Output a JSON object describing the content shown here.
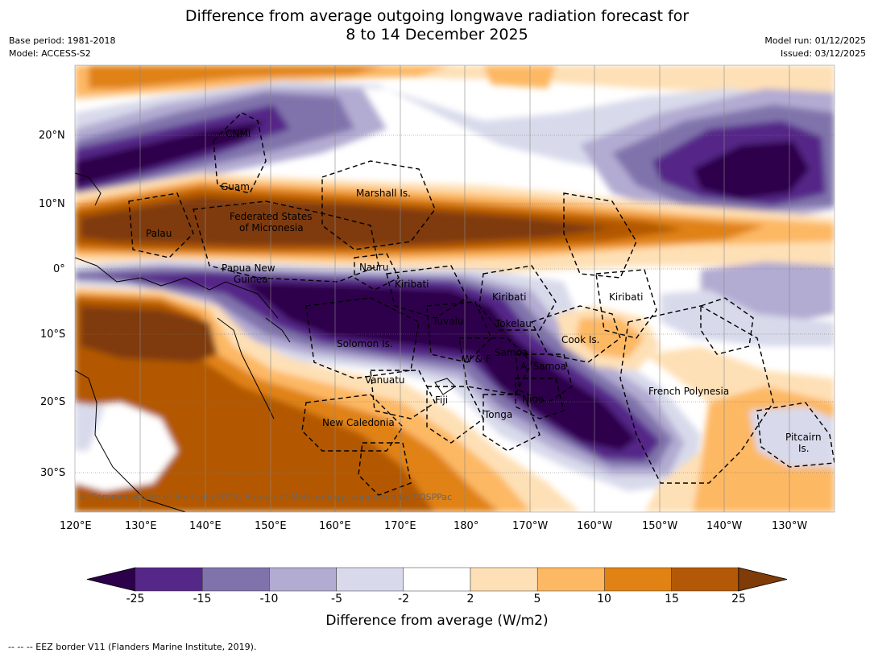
{
  "title": {
    "line1": "Difference from average outgoing longwave radiation forecast for",
    "line2": "8 to 14 December 2025"
  },
  "meta": {
    "base_period": "Base period: 1981-2018",
    "model": "Model: ACCESS-S2",
    "model_run": "Model run: 01/12/2025",
    "issued": "Issued: 03/12/2025"
  },
  "map": {
    "copyright": "© Commonwealth of Australia 2025, Bureau of Meteorology, supported by COSPPac",
    "lon_labels": [
      "120°E",
      "130°E",
      "140°E",
      "150°E",
      "160°E",
      "170°E",
      "180°",
      "170°W",
      "160°W",
      "150°W",
      "140°W",
      "130°W"
    ],
    "lat_labels": [
      "20°N",
      "10°N",
      "0°",
      "10°S",
      "20°S",
      "30°S"
    ],
    "regions": [
      {
        "name": "CNMI"
      },
      {
        "name": "Guam"
      },
      {
        "name": "Marshall Is."
      },
      {
        "name": "Federated States"
      },
      {
        "name": "of Micronesia"
      },
      {
        "name": "Palau"
      },
      {
        "name": "Papua New"
      },
      {
        "name": "Guinea"
      },
      {
        "name": "Nauru"
      },
      {
        "name": "Kiribati"
      },
      {
        "name": "Kiribati"
      },
      {
        "name": "Kiribati"
      },
      {
        "name": "Tuvalu"
      },
      {
        "name": "Tokelau"
      },
      {
        "name": "Solomon Is."
      },
      {
        "name": "Cook Is."
      },
      {
        "name": "Samoa"
      },
      {
        "name": "W & F"
      },
      {
        "name": "A. Samoa"
      },
      {
        "name": "Vanuatu"
      },
      {
        "name": "Fiji"
      },
      {
        "name": "Niue"
      },
      {
        "name": "Tonga"
      },
      {
        "name": "French Polynesia"
      },
      {
        "name": "New Caledonia"
      },
      {
        "name": "Pitcairn"
      },
      {
        "name": "Is."
      }
    ]
  },
  "colorbar": {
    "title": "Difference from average (W/m2)",
    "ticks": [
      "-25",
      "-15",
      "-10",
      "-5",
      "-2",
      "2",
      "5",
      "10",
      "15",
      "25"
    ],
    "colors": [
      "#2d004b",
      "#542788",
      "#8073ac",
      "#b2abd2",
      "#d8daeb",
      "#ffffff",
      "#fee0b6",
      "#fdb863",
      "#e08214",
      "#b35806",
      "#7f3b08"
    ]
  },
  "footer": "--  --  -- EEZ border V11 (Flanders Marine Institute, 2019)."
}
